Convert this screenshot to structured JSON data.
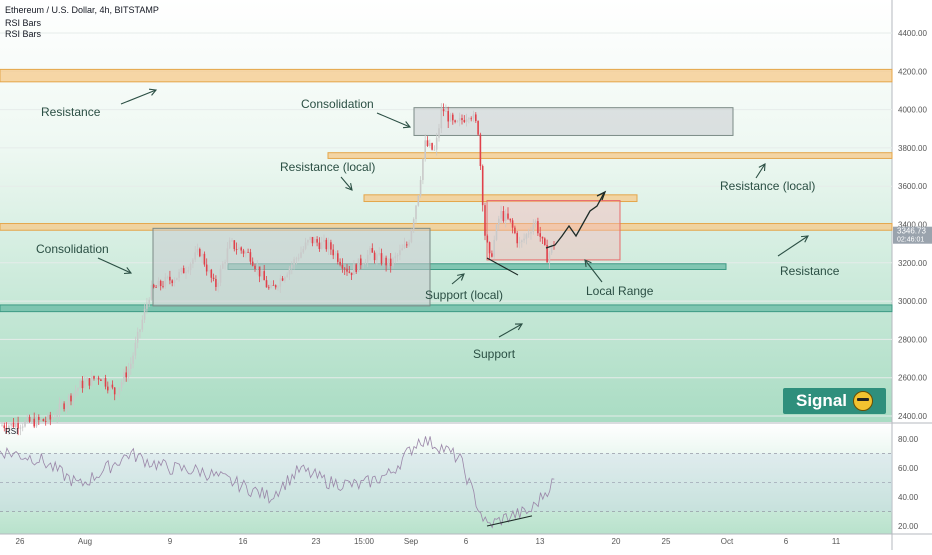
{
  "header": {
    "symbol": "Ethereum / U.S. Dollar, 4h, BITSTAMP",
    "indicator_1": "RSI Bars",
    "indicator_2": "RSI Bars"
  },
  "price_tag": {
    "price": "3346.73",
    "countdown": "02:46:01"
  },
  "badge": {
    "label": "Signal",
    "icon": "smiley-icon",
    "color": "#2f8f7c"
  },
  "colors": {
    "candle_up": "#d8d8d8",
    "candle_down": "#e0404a",
    "zone_orange": "#f5c98a",
    "zone_teal": "#5fb7a0",
    "box_grey": "#c8ccd0",
    "box_red": "#e86a6a",
    "bg_top": "#ffffff",
    "bg_bottom": "#a9dcc3"
  },
  "chart_data": {
    "type": "candlestick",
    "price_axis": {
      "ylim": [
        2350,
        4500
      ],
      "ticks": [
        "2400.00",
        "2600.00",
        "2800.00",
        "3000.00",
        "3200.00",
        "3400.00",
        "3600.00",
        "3800.00",
        "4000.00",
        "4200.00",
        "4400.00"
      ]
    },
    "rsi_axis": {
      "ylim": [
        15,
        90
      ],
      "ticks": [
        "20.00",
        "40.00",
        "60.00",
        "80.00"
      ],
      "levels": [
        30,
        50,
        70
      ]
    },
    "x_tick_labels": [
      "26",
      "Aug",
      "9",
      "16",
      "23",
      "15:00",
      "Sep",
      "6",
      "13",
      "20",
      "25",
      "Oct",
      "6",
      "11"
    ],
    "price_path": [
      [
        0,
        2350
      ],
      [
        50,
        2380
      ],
      [
        80,
        2560
      ],
      [
        100,
        2610
      ],
      [
        115,
        2520
      ],
      [
        130,
        2660
      ],
      [
        150,
        3050
      ],
      [
        165,
        3100
      ],
      [
        180,
        3140
      ],
      [
        200,
        3260
      ],
      [
        215,
        3070
      ],
      [
        230,
        3300
      ],
      [
        250,
        3240
      ],
      [
        270,
        3050
      ],
      [
        290,
        3180
      ],
      [
        310,
        3320
      ],
      [
        330,
        3280
      ],
      [
        350,
        3150
      ],
      [
        370,
        3250
      ],
      [
        390,
        3190
      ],
      [
        408,
        3300
      ],
      [
        418,
        3560
      ],
      [
        425,
        3820
      ],
      [
        435,
        3780
      ],
      [
        442,
        4010
      ],
      [
        455,
        3910
      ],
      [
        470,
        3990
      ],
      [
        478,
        3900
      ],
      [
        485,
        3350
      ],
      [
        490,
        3210
      ],
      [
        500,
        3460
      ],
      [
        510,
        3410
      ],
      [
        520,
        3290
      ],
      [
        535,
        3420
      ],
      [
        547,
        3230
      ],
      [
        555,
        3310
      ]
    ],
    "rsi_path": [
      [
        0,
        72
      ],
      [
        40,
        66
      ],
      [
        80,
        48
      ],
      [
        130,
        70
      ],
      [
        150,
        64
      ],
      [
        170,
        60
      ],
      [
        200,
        58
      ],
      [
        230,
        51
      ],
      [
        270,
        40
      ],
      [
        300,
        59
      ],
      [
        330,
        50
      ],
      [
        360,
        48
      ],
      [
        390,
        56
      ],
      [
        420,
        80
      ],
      [
        440,
        75
      ],
      [
        460,
        66
      ],
      [
        480,
        30
      ],
      [
        487,
        20
      ],
      [
        510,
        27
      ],
      [
        530,
        30
      ],
      [
        545,
        43
      ],
      [
        555,
        52
      ]
    ],
    "zones": [
      {
        "kind": "resistance",
        "y1": 4145,
        "y2": 4210,
        "x1": 0,
        "x2": 892
      },
      {
        "kind": "resistance-local",
        "y1": 3745,
        "y2": 3775,
        "x1": 328,
        "x2": 892
      },
      {
        "kind": "resistance-local",
        "y1": 3520,
        "y2": 3555,
        "x1": 364,
        "x2": 637
      },
      {
        "kind": "resistance",
        "y1": 3370,
        "y2": 3405,
        "x1": 0,
        "x2": 892
      },
      {
        "kind": "support-local",
        "y1": 3165,
        "y2": 3195,
        "x1": 228,
        "x2": 726
      },
      {
        "kind": "support",
        "y1": 2945,
        "y2": 2980,
        "x1": 0,
        "x2": 892
      }
    ],
    "boxes": [
      {
        "kind": "consolidation",
        "x1": 153,
        "x2": 430,
        "y1": 2975,
        "y2": 3380
      },
      {
        "kind": "consolidation",
        "x1": 414,
        "x2": 733,
        "y1": 3865,
        "y2": 4010
      },
      {
        "kind": "local-range",
        "x1": 487,
        "x2": 620,
        "y1": 3215,
        "y2": 3525
      }
    ],
    "annotations": [
      {
        "text": "Resistance",
        "x": 41,
        "y": 116
      },
      {
        "text": "Consolidation",
        "x": 301,
        "y": 108
      },
      {
        "text": "Resistance (local)",
        "x": 280,
        "y": 171
      },
      {
        "text": "Resistance (local)",
        "x": 720,
        "y": 190
      },
      {
        "text": "Consolidation",
        "x": 36,
        "y": 253
      },
      {
        "text": "Resistance",
        "x": 780,
        "y": 275
      },
      {
        "text": "Support (local)",
        "x": 425,
        "y": 299
      },
      {
        "text": "Local Range",
        "x": 586,
        "y": 295
      },
      {
        "text": "Support",
        "x": 473,
        "y": 358
      }
    ],
    "rsi_label": "RSI"
  }
}
